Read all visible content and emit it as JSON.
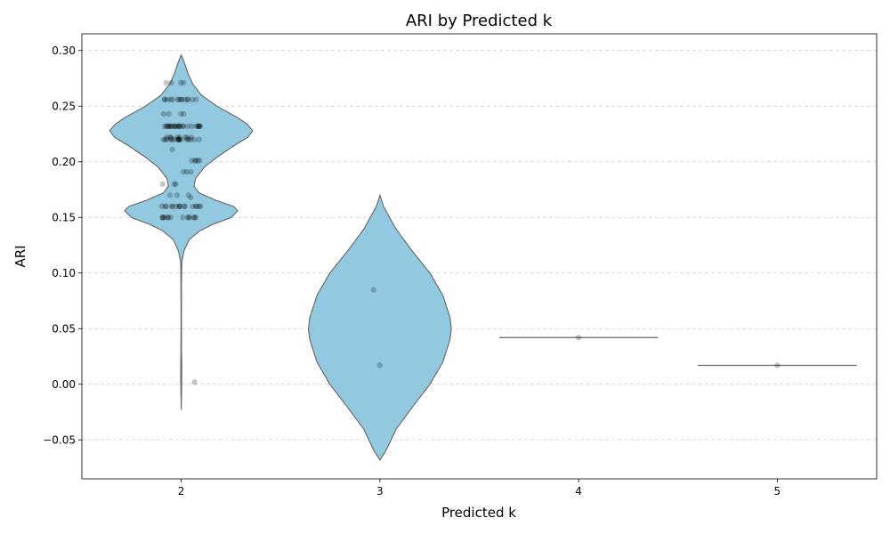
{
  "chart_data": {
    "type": "violin",
    "title": "ARI by Predicted k",
    "xlabel": "Predicted k",
    "ylabel": "ARI",
    "categories": [
      "2",
      "3",
      "4",
      "5"
    ],
    "ylim": [
      -0.085,
      0.315
    ],
    "yticks": [
      -0.05,
      0.0,
      0.05,
      0.1,
      0.15,
      0.2,
      0.25,
      0.3
    ],
    "ytick_labels": [
      "−0.05",
      "0.00",
      "0.05",
      "0.10",
      "0.15",
      "0.20",
      "0.25",
      "0.30"
    ],
    "grid": "y-dashed",
    "fill_color": "#92c9e0",
    "edge_color": "#666666",
    "point_color": "#000000",
    "groups": [
      {
        "k": "2",
        "violin_profile": [
          [
            0.296,
            0.0
          ],
          [
            0.29,
            0.04
          ],
          [
            0.28,
            0.09
          ],
          [
            0.27,
            0.16
          ],
          [
            0.26,
            0.28
          ],
          [
            0.25,
            0.5
          ],
          [
            0.24,
            0.78
          ],
          [
            0.234,
            0.92
          ],
          [
            0.228,
            1.0
          ],
          [
            0.222,
            0.93
          ],
          [
            0.215,
            0.75
          ],
          [
            0.205,
            0.52
          ],
          [
            0.195,
            0.32
          ],
          [
            0.185,
            0.2
          ],
          [
            0.178,
            0.18
          ],
          [
            0.172,
            0.25
          ],
          [
            0.165,
            0.5
          ],
          [
            0.16,
            0.73
          ],
          [
            0.156,
            0.79
          ],
          [
            0.15,
            0.7
          ],
          [
            0.144,
            0.45
          ],
          [
            0.138,
            0.26
          ],
          [
            0.13,
            0.11
          ],
          [
            0.12,
            0.04
          ],
          [
            0.11,
            0.008
          ],
          [
            0.09,
            0.004
          ],
          [
            0.06,
            0.003
          ],
          [
            0.03,
            0.004
          ],
          [
            0.015,
            0.008
          ],
          [
            0.0,
            0.006
          ],
          [
            -0.012,
            0.003
          ],
          [
            -0.023,
            0.0
          ]
        ],
        "points": [
          0.271,
          0.271,
          0.271,
          0.271,
          0.256,
          0.256,
          0.256,
          0.256,
          0.256,
          0.256,
          0.256,
          0.256,
          0.256,
          0.256,
          0.256,
          0.256,
          0.256,
          0.256,
          0.243,
          0.243,
          0.243,
          0.243,
          0.232,
          0.232,
          0.232,
          0.232,
          0.232,
          0.232,
          0.232,
          0.232,
          0.232,
          0.232,
          0.232,
          0.232,
          0.232,
          0.232,
          0.232,
          0.232,
          0.232,
          0.232,
          0.232,
          0.232,
          0.232,
          0.232,
          0.232,
          0.232,
          0.232,
          0.222,
          0.222,
          0.222,
          0.222,
          0.222,
          0.222,
          0.222,
          0.222,
          0.22,
          0.22,
          0.22,
          0.22,
          0.22,
          0.22,
          0.22,
          0.22,
          0.22,
          0.22,
          0.22,
          0.22,
          0.22,
          0.22,
          0.22,
          0.22,
          0.22,
          0.211,
          0.201,
          0.201,
          0.201,
          0.201,
          0.201,
          0.191,
          0.191,
          0.191,
          0.18,
          0.18,
          0.18,
          0.17,
          0.17,
          0.17,
          0.168,
          0.16,
          0.16,
          0.16,
          0.16,
          0.16,
          0.16,
          0.16,
          0.16,
          0.16,
          0.16,
          0.16,
          0.16,
          0.16,
          0.16,
          0.16,
          0.16,
          0.15,
          0.15,
          0.15,
          0.15,
          0.15,
          0.15,
          0.15,
          0.15,
          0.15,
          0.15,
          0.15,
          0.15,
          0.15,
          0.15,
          0.002
        ]
      },
      {
        "k": "3",
        "violin_profile": [
          [
            0.17,
            0.0
          ],
          [
            0.16,
            0.05
          ],
          [
            0.14,
            0.22
          ],
          [
            0.12,
            0.45
          ],
          [
            0.1,
            0.7
          ],
          [
            0.08,
            0.88
          ],
          [
            0.06,
            0.98
          ],
          [
            0.05,
            1.0
          ],
          [
            0.04,
            0.98
          ],
          [
            0.02,
            0.88
          ],
          [
            0.0,
            0.7
          ],
          [
            -0.02,
            0.46
          ],
          [
            -0.04,
            0.23
          ],
          [
            -0.06,
            0.08
          ],
          [
            -0.068,
            0.0
          ]
        ],
        "points": [
          0.085,
          0.017
        ]
      },
      {
        "k": "4",
        "violin_profile": [],
        "points": [
          0.042
        ]
      },
      {
        "k": "5",
        "violin_profile": [],
        "points": [
          0.017
        ]
      }
    ]
  }
}
